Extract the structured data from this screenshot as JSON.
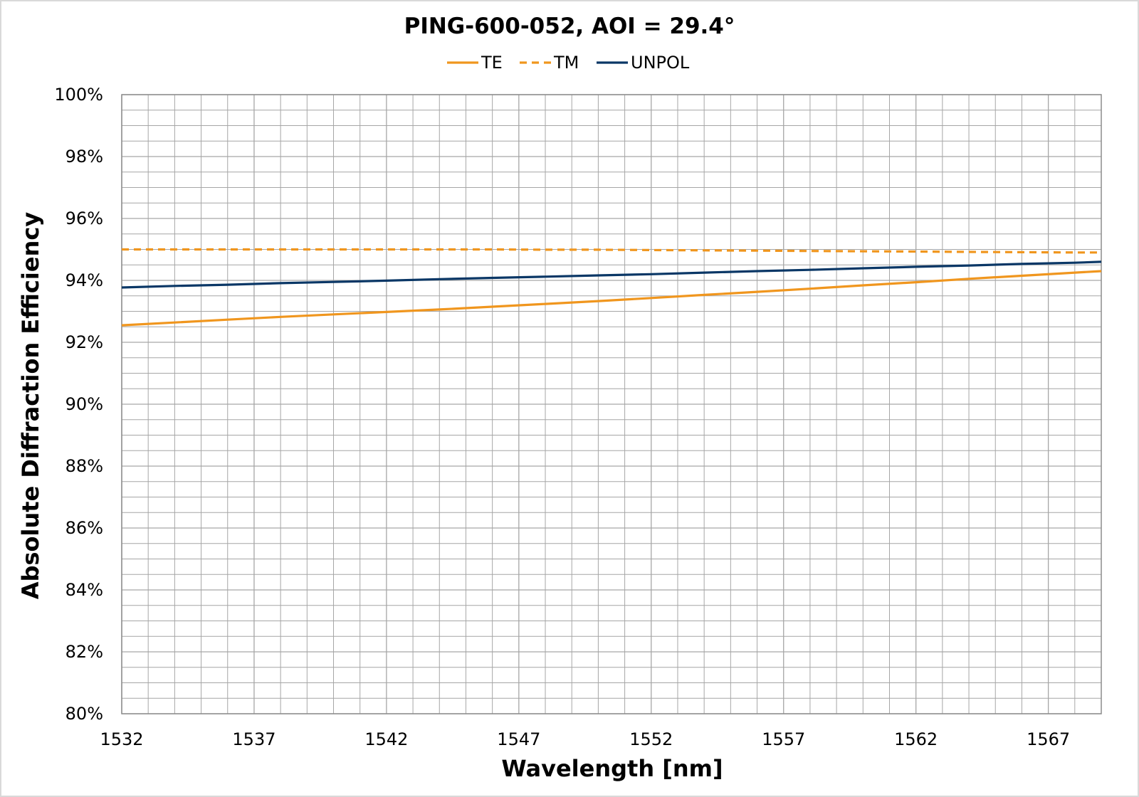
{
  "chart_data": {
    "type": "line",
    "title": "PING-600-052, AOI = 29.4°",
    "xlabel": "Wavelength [nm]",
    "ylabel": "Absolute Diffraction Efficiency",
    "xlim": [
      1532,
      1569
    ],
    "ylim": [
      80,
      100
    ],
    "x_ticks": [
      1532,
      1537,
      1542,
      1547,
      1552,
      1557,
      1562,
      1567
    ],
    "x_tick_labels": [
      "1532",
      "1537",
      "1542",
      "1547",
      "1552",
      "1557",
      "1562",
      "1567"
    ],
    "y_ticks": [
      80,
      82,
      84,
      86,
      88,
      90,
      92,
      94,
      96,
      98,
      100
    ],
    "y_tick_labels": [
      "80%",
      "82%",
      "84%",
      "86%",
      "88%",
      "90%",
      "92%",
      "94%",
      "96%",
      "98%",
      "100%"
    ],
    "x_minor_step": 1,
    "y_minor_step": 0.5,
    "grid": true,
    "legend_position": "top-center",
    "x": [
      1532,
      1534,
      1536,
      1538,
      1540,
      1542,
      1544,
      1546,
      1548,
      1550,
      1552,
      1554,
      1556,
      1558,
      1560,
      1562,
      1564,
      1566,
      1568,
      1569
    ],
    "series": [
      {
        "name": "TE",
        "color": "#f0961e",
        "style": "solid",
        "values": [
          92.55,
          92.64,
          92.73,
          92.82,
          92.9,
          92.98,
          93.06,
          93.15,
          93.24,
          93.33,
          93.43,
          93.53,
          93.63,
          93.73,
          93.84,
          93.94,
          94.05,
          94.15,
          94.25,
          94.3
        ]
      },
      {
        "name": "TM",
        "color": "#f0961e",
        "style": "dashed",
        "values": [
          95.0,
          95.0,
          95.0,
          95.0,
          95.0,
          95.0,
          95.0,
          95.0,
          94.99,
          94.99,
          94.98,
          94.97,
          94.96,
          94.95,
          94.94,
          94.93,
          94.92,
          94.91,
          94.9,
          94.9
        ]
      },
      {
        "name": "UNPOL",
        "color": "#0a3766",
        "style": "solid",
        "values": [
          93.77,
          93.82,
          93.86,
          93.91,
          93.95,
          93.99,
          94.04,
          94.08,
          94.12,
          94.16,
          94.2,
          94.25,
          94.3,
          94.34,
          94.39,
          94.44,
          94.48,
          94.53,
          94.57,
          94.6
        ]
      }
    ]
  },
  "colors": {
    "grid": "#a6a6a6",
    "plot_border": "#8c8c8c",
    "frame": "#d9d9d9",
    "background": "#ffffff"
  }
}
